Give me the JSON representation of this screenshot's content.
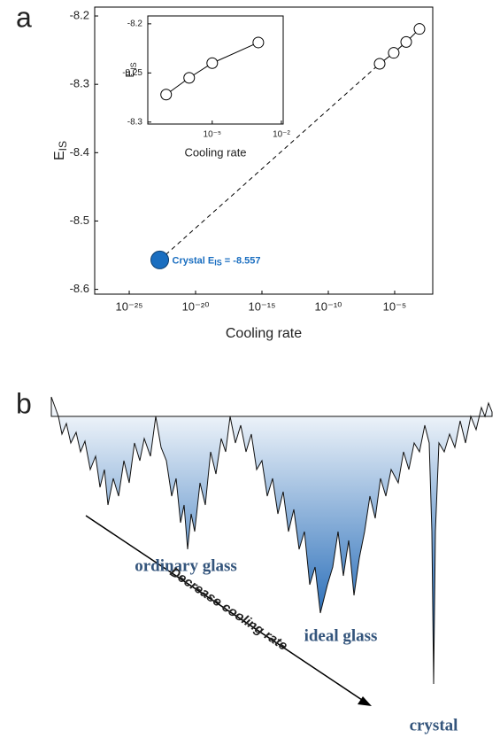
{
  "panel_labels": [
    "a",
    "b"
  ],
  "chart_data": [
    {
      "type": "scatter",
      "xlabel": "Cooling rate",
      "ylabel": "E",
      "ylabel_sub": "IS",
      "xscale": "log",
      "xlim": [
        2.5e-28,
        0.0074
      ],
      "ylim": [
        -8.607,
        -8.187
      ],
      "xticks": [
        {
          "value": 1e-25,
          "label": "10⁻²⁵"
        },
        {
          "value": 1e-20,
          "label": "10⁻²⁰"
        },
        {
          "value": 1e-15,
          "label": "10⁻¹⁵"
        },
        {
          "value": 1e-10,
          "label": "10⁻¹⁰"
        },
        {
          "value": 1e-05,
          "label": "10⁻⁵"
        }
      ],
      "yticks": [
        -8.6,
        -8.5,
        -8.4,
        -8.3,
        -8.2
      ],
      "connector": "dashed",
      "series": [
        {
          "x": [
            7.4e-07,
            8.5e-06,
            7.4e-05,
            0.00074
          ],
          "values": [
            -8.27,
            -8.254,
            -8.238,
            -8.219
          ],
          "color": "#000000",
          "marker": "open",
          "line": "solid"
        },
        {
          "x": [
            2e-23
          ],
          "values": [
            -8.557
          ],
          "value_labels": [
            "-8.557"
          ],
          "color": "#1a6ec0",
          "marker": "filled",
          "label": "Crystal E",
          "label_sub": "IS",
          "label_eq": " = "
        }
      ]
    },
    {
      "type": "scatter",
      "xlabel": "Cooling rate",
      "ylabel": "E",
      "ylabel_sub": "IS",
      "xscale": "log",
      "xlim": [
        1.6e-08,
        0.012
      ],
      "ylim": [
        -8.302,
        -8.192
      ],
      "xticks": [
        {
          "value": 1e-05,
          "label": "10⁻⁵"
        },
        {
          "value": 0.01,
          "label": "10⁻²"
        }
      ],
      "yticks": [
        -8.3,
        -8.25,
        -8.2
      ],
      "series": [
        {
          "x": [
            1e-07,
            1e-06,
            1e-05,
            0.001
          ],
          "values": [
            -8.272,
            -8.255,
            -8.24,
            -8.219
          ],
          "color": "#000000",
          "marker": "open",
          "line": "solid"
        }
      ]
    }
  ],
  "diagram": {
    "labels": [
      "ordinary glass",
      "ideal glass",
      "crystal"
    ],
    "arrow_label": "Decrease cooling rate"
  }
}
